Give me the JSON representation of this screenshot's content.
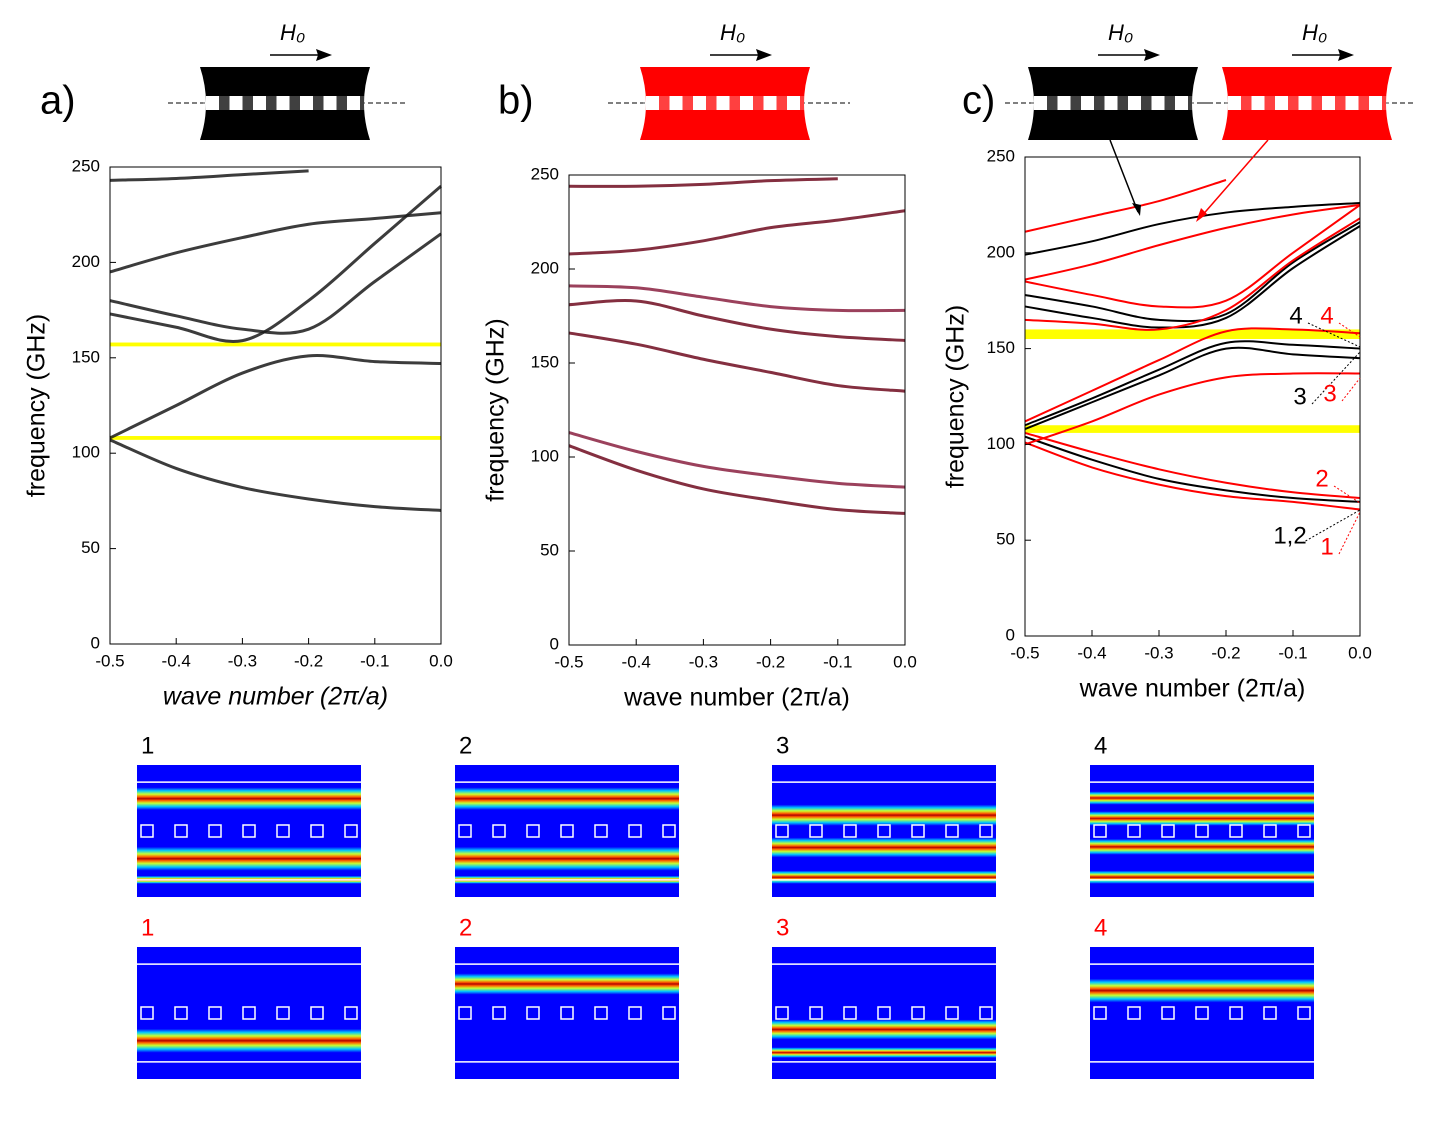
{
  "chart_data": [
    {
      "type": "line",
      "label": "a)",
      "ylabel": "frequency (GHz)",
      "xlabel": "wave number (2π/a)",
      "waveguides": [
        {
          "color": "#000000",
          "field": "H₀"
        }
      ],
      "x": [
        -0.5,
        -0.4,
        -0.3,
        -0.2,
        -0.1,
        0
      ],
      "series": [
        {
          "color": "#1a1a1a",
          "values": [
            107,
            92,
            82,
            76,
            72,
            70
          ]
        },
        {
          "color": "#1a1a1a",
          "values": [
            108,
            125,
            142,
            151,
            148,
            147
          ]
        },
        {
          "color": "#1a1a1a",
          "values": [
            180,
            172,
            165,
            165,
            190,
            215
          ]
        },
        {
          "color": "#1a1a1a",
          "values": [
            173,
            166,
            159,
            180,
            210,
            240
          ]
        },
        {
          "color": "#1a1a1a",
          "values": [
            195,
            205,
            213,
            220,
            223,
            226
          ]
        },
        {
          "color": "#1a1a1a",
          "values": [
            243,
            244,
            246,
            248,
            null,
            null
          ]
        }
      ],
      "bands": [
        [
          156,
          158
        ],
        [
          107,
          109
        ]
      ],
      "band_color": "#ffff00",
      "xlim": [
        -0.5,
        0
      ],
      "ylim": [
        0,
        250
      ],
      "xticks": [
        -0.5,
        -0.4,
        -0.3,
        -0.2,
        -0.1,
        {
          "value": 0,
          "label": "0.0"
        }
      ],
      "yticks": [
        0,
        50,
        100,
        150,
        200,
        250
      ]
    },
    {
      "type": "line",
      "label": "b)",
      "ylabel": "frequency (GHz)",
      "xlabel": "wave number (2π/a)",
      "waveguides": [
        {
          "color": "#ff0000",
          "field": "H₀"
        }
      ],
      "x": [
        -0.5,
        -0.4,
        -0.3,
        -0.2,
        -0.1,
        0
      ],
      "series": [
        {
          "color": "#6e0a1e",
          "values": [
            106,
            93,
            83,
            77,
            72,
            70
          ]
        },
        {
          "color": "#8a2040",
          "values": [
            113,
            103,
            95,
            90,
            86,
            84
          ]
        },
        {
          "color": "#6e0a1e",
          "values": [
            166,
            160,
            152,
            145,
            138,
            135
          ]
        },
        {
          "color": "#6e0a1e",
          "values": [
            181,
            183,
            175,
            168,
            164,
            162
          ]
        },
        {
          "color": "#8a2040",
          "values": [
            191,
            190,
            185,
            180,
            178,
            178
          ]
        },
        {
          "color": "#6e0a1e",
          "values": [
            208,
            210,
            215,
            222,
            226,
            231
          ]
        },
        {
          "color": "#6e0a1e",
          "values": [
            244,
            244,
            245,
            247,
            248,
            null
          ]
        }
      ],
      "bands": [],
      "band_color": "#ffff00",
      "xlim": [
        -0.5,
        0
      ],
      "ylim": [
        0,
        250
      ],
      "xticks": [
        -0.5,
        -0.4,
        -0.3,
        -0.2,
        -0.1,
        {
          "value": 0,
          "label": "0.0"
        }
      ],
      "yticks": [
        0,
        50,
        100,
        150,
        200,
        250
      ]
    },
    {
      "type": "line",
      "label": "c)",
      "ylabel": "frequency (GHz)",
      "xlabel": "wave number (2π/a)",
      "waveguides": [
        {
          "color": "#000000",
          "field": "H₀"
        },
        {
          "color": "#ff0000",
          "field": "H₀"
        }
      ],
      "x": [
        -0.5,
        -0.4,
        -0.3,
        -0.2,
        -0.1,
        0
      ],
      "series": [
        {
          "color": "#000000",
          "values": [
            104,
            92,
            82,
            76,
            72,
            70
          ]
        },
        {
          "color": "#000000",
          "values": [
            110,
            124,
            139,
            153,
            152,
            150
          ]
        },
        {
          "color": "#000000",
          "values": [
            108,
            122,
            136,
            150,
            147,
            145
          ]
        },
        {
          "color": "#000000",
          "values": [
            178,
            172,
            165,
            168,
            195,
            216
          ]
        },
        {
          "color": "#000000",
          "values": [
            172,
            166,
            161,
            166,
            192,
            214
          ]
        },
        {
          "color": "#000000",
          "values": [
            199,
            206,
            215,
            221,
            224,
            226
          ]
        },
        {
          "color": "#ff0000",
          "values": [
            101,
            88,
            79,
            73,
            70,
            66
          ]
        },
        {
          "color": "#ff0000",
          "values": [
            106,
            96,
            87,
            80,
            75,
            72
          ]
        },
        {
          "color": "#ff0000",
          "values": [
            100,
            112,
            126,
            135,
            137,
            137
          ]
        },
        {
          "color": "#ff0000",
          "values": [
            112,
            128,
            144,
            159,
            160,
            158
          ]
        },
        {
          "color": "#ff0000",
          "values": [
            185,
            178,
            172,
            175,
            200,
            225
          ]
        },
        {
          "color": "#ff0000",
          "values": [
            165,
            163,
            160,
            170,
            196,
            218
          ]
        },
        {
          "color": "#ff0000",
          "values": [
            186,
            194,
            204,
            213,
            220,
            225
          ]
        },
        {
          "color": "#ff0000",
          "values": [
            211,
            219,
            227,
            238,
            null,
            null
          ]
        }
      ],
      "bands": [
        [
          155,
          160
        ],
        [
          106,
          110
        ]
      ],
      "band_color": "#ffff00",
      "annotations": [
        {
          "text": "4",
          "color": "#000000"
        },
        {
          "text": "4",
          "color": "#ff0000"
        },
        {
          "text": "3",
          "color": "#000000"
        },
        {
          "text": "3",
          "color": "#ff0000"
        },
        {
          "text": "2",
          "color": "#ff0000"
        },
        {
          "text": "1,2",
          "color": "#000000"
        },
        {
          "text": "1",
          "color": "#ff0000"
        }
      ],
      "xlim": [
        -0.5,
        0
      ],
      "ylim": [
        0,
        250
      ],
      "xticks": [
        -0.5,
        -0.4,
        -0.3,
        -0.2,
        -0.1,
        {
          "value": 0,
          "label": "0.0"
        }
      ],
      "yticks": [
        0,
        50,
        100,
        150,
        200,
        250
      ]
    }
  ],
  "mode_maps": [
    [
      {
        "label": "1",
        "color": "#000000"
      },
      {
        "label": "2",
        "color": "#000000"
      },
      {
        "label": "3",
        "color": "#000000"
      },
      {
        "label": "4",
        "color": "#000000"
      }
    ],
    [
      {
        "label": "1",
        "color": "#ff0000"
      },
      {
        "label": "2",
        "color": "#ff0000"
      },
      {
        "label": "3",
        "color": "#ff0000"
      },
      {
        "label": "4",
        "color": "#ff0000"
      }
    ]
  ]
}
